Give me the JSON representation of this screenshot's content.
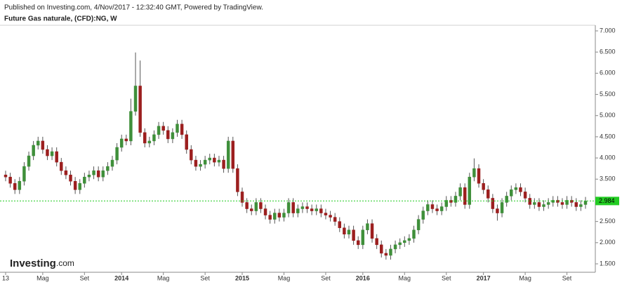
{
  "chart_data": {
    "type": "candlestick",
    "published": "Published on Investing.com, 4/Nov/2017 - 12:32:40 GMT, Powered by TradingView.",
    "title": "Future Gas naturale, (CFD):NG, W",
    "logo": "Investing",
    "logo_suffix": ".com",
    "up_color": "#3f8f3a",
    "down_color": "#9c1f1f",
    "wick_color": "#555555",
    "price_line_color": "#22cc22",
    "ylim": [
      1.5,
      7.0
    ],
    "yticks": [
      {
        "value": 1.5,
        "label": "1.500"
      },
      {
        "value": 2.0,
        "label": "2.000"
      },
      {
        "value": 2.5,
        "label": "2.500"
      },
      {
        "value": 3.0,
        "label": "3.000"
      },
      {
        "value": 3.5,
        "label": "3.500"
      },
      {
        "value": 4.0,
        "label": "4.000"
      },
      {
        "value": 4.5,
        "label": "4.500"
      },
      {
        "value": 5.0,
        "label": "5.000"
      },
      {
        "value": 5.5,
        "label": "5.500"
      },
      {
        "value": 6.0,
        "label": "6.000"
      },
      {
        "value": 6.5,
        "label": "6.500"
      },
      {
        "value": 7.0,
        "label": "7.000"
      }
    ],
    "xticks": [
      {
        "value": 0,
        "label": "13"
      },
      {
        "value": 8,
        "label": "Mag"
      },
      {
        "value": 17,
        "label": "Set"
      },
      {
        "value": 25,
        "label": "2014"
      },
      {
        "value": 34,
        "label": "Mag"
      },
      {
        "value": 43,
        "label": "Set"
      },
      {
        "value": 51,
        "label": "2015"
      },
      {
        "value": 60,
        "label": "Mag"
      },
      {
        "value": 69,
        "label": "Set"
      },
      {
        "value": 77,
        "label": "2016"
      },
      {
        "value": 86,
        "label": "Mag"
      },
      {
        "value": 95,
        "label": "Set"
      },
      {
        "value": 103,
        "label": "2017"
      },
      {
        "value": 112,
        "label": "Mag"
      },
      {
        "value": 121,
        "label": "Set"
      }
    ],
    "open": [
      3.6,
      3.55,
      3.4,
      3.25,
      3.45,
      3.8,
      4.05,
      4.3,
      4.4,
      4.2,
      4.05,
      4.15,
      3.9,
      3.7,
      3.6,
      3.45,
      3.25,
      3.4,
      3.55,
      3.6,
      3.7,
      3.55,
      3.7,
      3.8,
      3.95,
      4.25,
      4.45,
      4.4,
      5.1,
      5.7,
      4.6,
      4.35,
      4.4,
      4.55,
      4.75,
      4.65,
      4.45,
      4.6,
      4.8,
      4.55,
      4.2,
      3.95,
      3.8,
      3.85,
      3.95,
      4.0,
      3.9,
      3.95,
      3.75,
      4.4,
      3.75,
      3.2,
      2.95,
      2.8,
      2.75,
      2.95,
      2.8,
      2.65,
      2.55,
      2.7,
      2.6,
      2.7,
      2.95,
      2.7,
      2.8,
      2.85,
      2.8,
      2.75,
      2.8,
      2.7,
      2.65,
      2.6,
      2.5,
      2.35,
      2.2,
      2.3,
      2.05,
      1.95,
      2.3,
      2.45,
      2.1,
      1.95,
      1.75,
      1.7,
      1.85,
      1.95,
      2.0,
      2.05,
      2.1,
      2.3,
      2.55,
      2.75,
      2.9,
      2.8,
      2.75,
      2.85,
      3.0,
      2.95,
      3.1,
      3.3,
      2.9,
      3.55,
      3.75,
      3.4,
      3.25,
      3.05,
      2.8,
      2.7,
      2.95,
      3.1,
      3.25,
      3.3,
      3.2,
      3.05,
      2.9,
      2.95,
      2.85,
      2.9,
      2.95,
      3.0,
      2.95,
      2.9,
      3.0,
      2.95,
      2.85,
      2.9
    ],
    "high": [
      3.7,
      3.65,
      3.5,
      3.55,
      3.9,
      4.15,
      4.4,
      4.5,
      4.5,
      4.3,
      4.25,
      4.25,
      4.0,
      3.8,
      3.7,
      3.55,
      3.5,
      3.65,
      3.7,
      3.8,
      3.8,
      3.8,
      3.9,
      4.05,
      4.35,
      4.55,
      4.55,
      5.4,
      6.49,
      6.3,
      4.7,
      4.5,
      4.65,
      4.85,
      4.85,
      4.75,
      4.7,
      4.9,
      4.9,
      4.65,
      4.3,
      4.05,
      3.95,
      4.05,
      4.1,
      4.1,
      4.05,
      4.05,
      4.5,
      4.5,
      3.85,
      3.3,
      3.05,
      2.9,
      3.05,
      3.05,
      2.9,
      2.75,
      2.8,
      2.8,
      2.8,
      3.05,
      3.05,
      2.9,
      2.95,
      2.95,
      2.9,
      2.9,
      2.9,
      2.8,
      2.75,
      2.7,
      2.6,
      2.45,
      2.4,
      2.4,
      2.15,
      2.4,
      2.55,
      2.55,
      2.2,
      2.05,
      1.85,
      1.95,
      2.05,
      2.1,
      2.15,
      2.2,
      2.4,
      2.65,
      2.85,
      3.0,
      3.0,
      2.9,
      2.95,
      3.1,
      3.1,
      3.2,
      3.4,
      3.4,
      3.65,
      3.99,
      3.85,
      3.5,
      3.35,
      3.15,
      2.9,
      3.05,
      3.2,
      3.35,
      3.4,
      3.4,
      3.3,
      3.15,
      3.05,
      3.05,
      3.0,
      3.05,
      3.1,
      3.1,
      3.05,
      3.1,
      3.1,
      3.05,
      3.0,
      3.08
    ],
    "low": [
      3.45,
      3.3,
      3.15,
      3.15,
      3.35,
      3.7,
      3.95,
      4.2,
      4.1,
      3.95,
      3.95,
      3.8,
      3.6,
      3.5,
      3.35,
      3.15,
      3.15,
      3.3,
      3.45,
      3.5,
      3.45,
      3.45,
      3.6,
      3.7,
      3.85,
      4.15,
      4.3,
      4.3,
      5.0,
      4.5,
      4.25,
      4.25,
      4.3,
      4.45,
      4.55,
      4.35,
      4.35,
      4.5,
      4.45,
      4.1,
      3.85,
      3.7,
      3.7,
      3.75,
      3.85,
      3.8,
      3.8,
      3.65,
      3.65,
      3.65,
      3.1,
      2.85,
      2.7,
      2.65,
      2.65,
      2.7,
      2.55,
      2.45,
      2.45,
      2.5,
      2.5,
      2.6,
      2.6,
      2.6,
      2.7,
      2.7,
      2.65,
      2.65,
      2.6,
      2.55,
      2.5,
      2.4,
      2.25,
      2.1,
      2.1,
      1.95,
      1.85,
      1.85,
      2.2,
      2.0,
      1.85,
      1.65,
      1.6,
      1.6,
      1.75,
      1.85,
      1.9,
      1.95,
      2.0,
      2.2,
      2.45,
      2.65,
      2.7,
      2.65,
      2.65,
      2.75,
      2.85,
      2.85,
      3.0,
      2.8,
      2.8,
      3.45,
      3.3,
      3.15,
      2.95,
      2.7,
      2.52,
      2.6,
      2.85,
      3.0,
      3.15,
      3.1,
      2.95,
      2.8,
      2.8,
      2.75,
      2.75,
      2.8,
      2.85,
      2.85,
      2.8,
      2.8,
      2.85,
      2.75,
      2.75,
      2.8
    ],
    "close": [
      3.55,
      3.4,
      3.25,
      3.45,
      3.8,
      4.05,
      4.3,
      4.4,
      4.2,
      4.05,
      4.15,
      3.9,
      3.7,
      3.6,
      3.45,
      3.25,
      3.4,
      3.55,
      3.6,
      3.7,
      3.55,
      3.7,
      3.8,
      3.95,
      4.25,
      4.45,
      4.4,
      5.1,
      5.7,
      4.6,
      4.35,
      4.4,
      4.55,
      4.75,
      4.65,
      4.45,
      4.6,
      4.8,
      4.55,
      4.2,
      3.95,
      3.8,
      3.85,
      3.95,
      4.0,
      3.9,
      3.95,
      3.75,
      4.4,
      3.75,
      3.2,
      2.95,
      2.8,
      2.75,
      2.95,
      2.8,
      2.65,
      2.55,
      2.7,
      2.6,
      2.7,
      2.95,
      2.7,
      2.8,
      2.85,
      2.8,
      2.75,
      2.8,
      2.7,
      2.65,
      2.6,
      2.5,
      2.35,
      2.2,
      2.3,
      2.05,
      1.95,
      2.3,
      2.45,
      2.1,
      1.95,
      1.75,
      1.7,
      1.85,
      1.95,
      2.0,
      2.05,
      2.1,
      2.3,
      2.55,
      2.75,
      2.9,
      2.8,
      2.75,
      2.85,
      3.0,
      2.95,
      3.1,
      3.3,
      2.9,
      3.55,
      3.75,
      3.4,
      3.25,
      3.05,
      2.8,
      2.7,
      2.95,
      3.1,
      3.25,
      3.3,
      3.2,
      3.05,
      2.9,
      2.95,
      2.85,
      2.9,
      2.95,
      3.0,
      2.95,
      2.9,
      3.0,
      2.95,
      2.85,
      2.9,
      2.984
    ]
  }
}
